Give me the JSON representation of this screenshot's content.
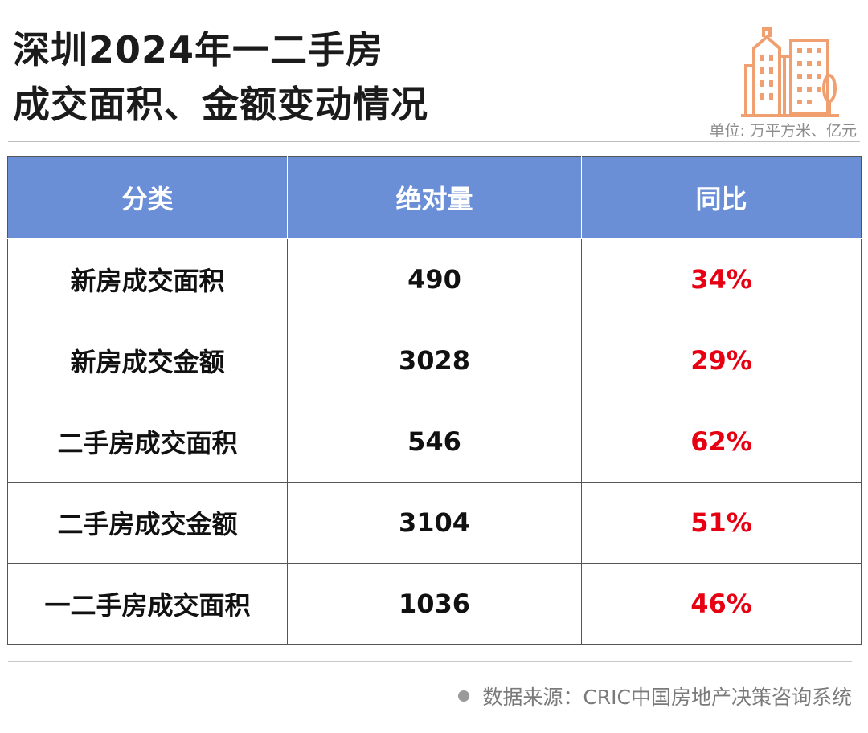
{
  "title_line1": "深圳2024年一二手房",
  "title_line2": "成交面积、金额变动情况",
  "unit": "单位: 万平方米、亿元",
  "accent_color": "#6a8fd6",
  "positive_color": "#e60012",
  "icon": "building-icon",
  "source": "数据来源：CRIC中国房地产决策咨询系统",
  "chart_data": {
    "type": "table",
    "columns": [
      "分类",
      "绝对量",
      "同比"
    ],
    "rows": [
      {
        "category": "新房成交面积",
        "value": "490",
        "yoy": "34%"
      },
      {
        "category": "新房成交金额",
        "value": "3028",
        "yoy": "29%"
      },
      {
        "category": "二手房成交面积",
        "value": "546",
        "yoy": "62%"
      },
      {
        "category": "二手房成交金额",
        "value": "3104",
        "yoy": "51%"
      },
      {
        "category": "一二手房成交面积",
        "value": "1036",
        "yoy": "46%"
      }
    ]
  }
}
